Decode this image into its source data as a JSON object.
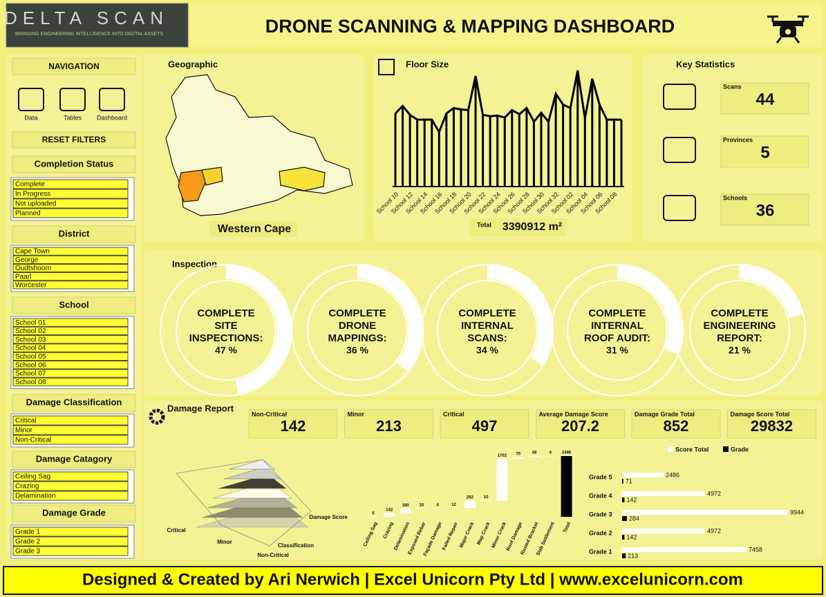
{
  "header": {
    "logo": "DELTA SCAN",
    "tagline": "BRINGING ENGINEERING INTELLIGENCE INTO DIGITAL ASSETS",
    "title": "DRONE SCANNING & MAPPING DASHBOARD"
  },
  "navigation": {
    "title": "NAVIGATION",
    "items": [
      "Data",
      "Tables",
      "Dashboard"
    ],
    "reset": "RESET FILTERS"
  },
  "filters": [
    {
      "title": "Completion Status",
      "items": [
        "Complete",
        "In Progress",
        "Not uploaded",
        "Planned"
      ]
    },
    {
      "title": "District",
      "items": [
        "Cape Town",
        "George",
        "Oudtshoorn",
        "Paarl",
        "Worcester"
      ]
    },
    {
      "title": "School",
      "items": [
        "School 01",
        "School 02",
        "School 03",
        "School 04",
        "School 05",
        "School 06",
        "School 07",
        "School 08"
      ]
    },
    {
      "title": "Damage Classification",
      "items": [
        "Critical",
        "Minor",
        "Non-Critical"
      ]
    },
    {
      "title": "Damage Catagory",
      "items": [
        "Ceiling Sag",
        "Crazing",
        "Delamination"
      ]
    },
    {
      "title": "Damage Grade",
      "items": [
        "Grade 1",
        "Grade 2",
        "Grade 3"
      ]
    }
  ],
  "geographic": {
    "title": "Geographic",
    "region": "Western Cape"
  },
  "floor_size": {
    "title": "Floor Size",
    "chart_data": {
      "type": "lollipop",
      "color": "#000000",
      "categories": [
        "School 10",
        null,
        "School 12",
        null,
        "School 14",
        null,
        "School 16",
        null,
        "School 18",
        null,
        "School 20",
        null,
        "School 22",
        null,
        "School 24",
        null,
        "School 26",
        null,
        "School 28",
        null,
        "School 30",
        null,
        "School 32",
        null,
        "School 02",
        null,
        "School 04",
        null,
        "School 06",
        null,
        "School 08",
        null
      ],
      "values": [
        101650,
        112100,
        99750,
        93100,
        93100,
        93100,
        76000,
        101650,
        109250,
        107350,
        106400,
        153900,
        99750,
        97850,
        98800,
        95950,
        106400,
        100700,
        109250,
        90250,
        102600,
        90250,
        129200,
        114000,
        109250,
        161500,
        95000,
        150100,
        114000,
        93100,
        93100,
        93100
      ]
    },
    "total_label": "Total",
    "total_value": "3390912 m²"
  },
  "key_statistics": {
    "title": "Key Statistics",
    "items": [
      {
        "label": "Scans",
        "value": 44
      },
      {
        "label": "Provinces",
        "value": 5
      },
      {
        "label": "Schools",
        "value": 36
      }
    ]
  },
  "inspection": {
    "title": "Inspection",
    "items": [
      {
        "label": [
          "COMPLETE",
          "SITE",
          "INSPECTIONS:"
        ],
        "value": 47,
        "value_label": "47 %"
      },
      {
        "label": [
          "COMPLETE",
          "DRONE",
          "MAPPINGS:"
        ],
        "value": 36,
        "value_label": "36 %"
      },
      {
        "label": [
          "COMPLETE",
          "INTERNAL",
          "SCANS:"
        ],
        "value": 34,
        "value_label": "34 %"
      },
      {
        "label": [
          "COMPLETE",
          "INTERNAL",
          "ROOF AUDIT:"
        ],
        "value": 31,
        "value_label": "31 %"
      },
      {
        "label": [
          "COMPLETE",
          "ENGINEERING",
          "REPORT:"
        ],
        "value": 21,
        "value_label": "21 %"
      }
    ]
  },
  "damage_report": {
    "title": "Damage Report",
    "kpis": [
      {
        "label": "Non-Critical",
        "value": 142
      },
      {
        "label": "Minor",
        "value": 213
      },
      {
        "label": "Critical",
        "value": 497
      },
      {
        "label": "Average Damage Score",
        "value": 207.2
      },
      {
        "label": "Damage Grade Total",
        "value": 852
      },
      {
        "label": "Damage Score Total",
        "value": 29832
      }
    ],
    "pyramid_labels": [
      "Critical",
      "Minor",
      "Non-Critical",
      "Classification",
      "Damage Score"
    ],
    "waterfall": {
      "type": "waterfall",
      "color": "#ffffff",
      "total_color": "#000000",
      "categories": [
        "Ceiling Sag",
        "Crazing",
        "Delamination",
        "Exposed Rebar",
        "Façade Damage",
        "Failed Repair",
        "Major Crack",
        "Map Crack",
        "Minor Crack",
        "Roof Damage",
        "Rusted Bracket",
        "Slab Settlement",
        "Total"
      ],
      "values": [
        6,
        142,
        180,
        16,
        4,
        12,
        292,
        10,
        1702,
        70,
        48,
        4,
        2486
      ]
    },
    "grades": {
      "type": "hbar",
      "categories": [
        "Grade 5",
        "Grade 4",
        "Grade 3",
        "Grade 2",
        "Grade 1"
      ],
      "series": [
        {
          "name": "Score Total",
          "color": "#ffffff",
          "values": [
            2486,
            4972,
            9944,
            4972,
            7458
          ]
        },
        {
          "name": "Grade",
          "color": "#000000",
          "values": [
            71,
            142,
            284,
            142,
            213
          ]
        }
      ]
    }
  },
  "footer": "Designed & Created by Ari Nerwich | Excel Unicorn Pty Ltd | www.excelunicorn.com"
}
